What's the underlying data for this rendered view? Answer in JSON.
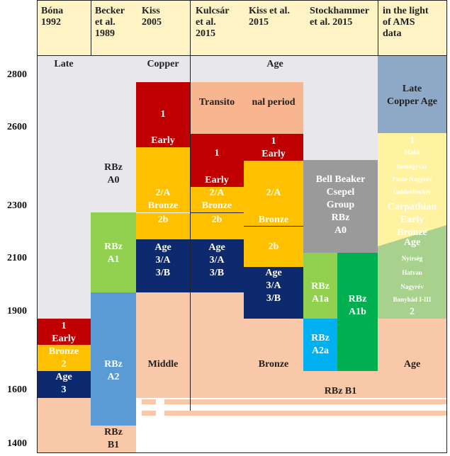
{
  "columns": [
    {
      "id": "bona",
      "header": "Bóna\n1992"
    },
    {
      "id": "becker",
      "header": "Becker\net al.\n1989"
    },
    {
      "id": "kiss2005",
      "header": "Kiss\n2005"
    },
    {
      "id": "kulcsar",
      "header": "Kulcsár\net al.\n2015"
    },
    {
      "id": "kiss2015",
      "header": "Kiss et al.\n2015"
    },
    {
      "id": "stockhammer",
      "header": "Stockhammer\net al. 2015"
    },
    {
      "id": "ams",
      "header": "in the light\nof AMS\ndata"
    }
  ],
  "y_axis": {
    "ticks": [
      "2800",
      "2600",
      "2300",
      "2100",
      "1900",
      "1600",
      "1400"
    ]
  },
  "labels": {
    "late": "Late",
    "copper": "Copper",
    "age_top": "Age",
    "transito": "Transito",
    "nal_period": "nal period",
    "bona_bronze_seq": "1\nEarly\nBronze\n2\nAge\n3",
    "becker_a0": "RBz\nA0",
    "becker_a1": "RBz\nA1",
    "becker_a2": "RBz\nA2",
    "becker_b1": "RBz\nB1",
    "kiss05_1": "1",
    "kiss05_early": "Early",
    "kiss05_2a_bronze": "2/A\nBronze",
    "kiss05_2b": "2b",
    "kiss05_age3": "Age\n3/A\n3/B",
    "middle": "Middle",
    "kulc_1": "1",
    "kulc_early": "Early",
    "kulc_2a_bronze": "2/A\nBronze",
    "kulc_2b": "2b",
    "kulc_age3": "Age\n3/A\n3/B",
    "kiss15_1_early": "1\nEarly",
    "kiss15_2a": "2/A",
    "kiss15_bronze": "Bronze",
    "kiss15_2b": "2b",
    "kiss15_age3": "Age\n3/A\n3/B",
    "bronze_low": "Bronze",
    "bell_beaker": "Bell Beaker\nCsepel\nGroup\nRBz\nA0",
    "rbz_a1a": "RBz\nA1a",
    "rbz_a1b": "RBz\nA1b",
    "rbz_a2a": "RBz\nA2a",
    "rbz_b1_right": "RBz B1",
    "ams_late_copper": "Late\nCopper Age",
    "ams_1": "1",
    "ams_mako": "Makó",
    "ams_somogyvar": "Somogyvár",
    "ams_proto_nagyrev": "Proto-Nagyrév",
    "ams_gold": "Goldenbecher",
    "ams_carpathian": "Carpathian",
    "ams_early": "Early",
    "ams_bronze": "Bronze",
    "ams_age_mid": "Age",
    "ams_nyirseg": "Nyírség",
    "ams_hatvan": "Hatvan",
    "ams_nagyrev": "Nagyrév",
    "ams_bonyhad": "Bonyhád I-III",
    "ams_2": "2",
    "ams_age_low": "Age"
  },
  "colors": {
    "header_bg": "#fdf3c4",
    "late_copper_bg": "#e8e8ec",
    "red": "#c00000",
    "amber": "#ffc000",
    "navy": "#0d2a6e",
    "salmon": "#f8c8a8",
    "green_light": "#92d050",
    "blue_light": "#5b9bd5",
    "gray": "#9a9a9a",
    "green_bright": "#00b050",
    "cyan": "#00b0f0",
    "blue_gray": "#8ea9c8",
    "yellow_light": "#fff2a0"
  }
}
